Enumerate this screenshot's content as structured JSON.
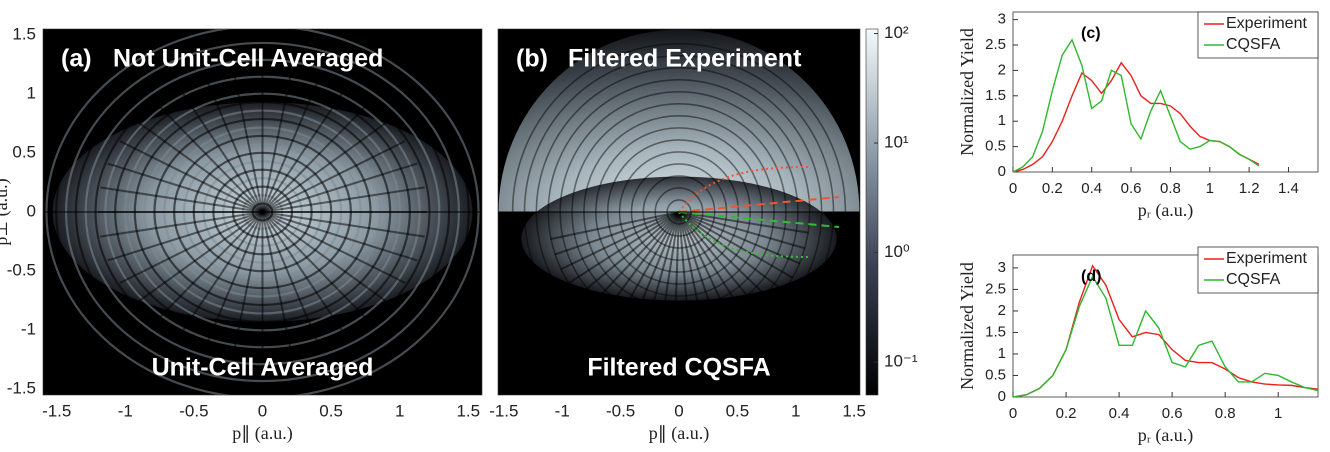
{
  "chart_data": [
    {
      "type": "image",
      "panel_label": "(a)",
      "top_text": "Not Unit-Cell Averaged",
      "bottom_text": "Unit-Cell Averaged",
      "xlabel": "p∥ (a.u.)",
      "ylabel": "p⊥ (a.u.)",
      "xlim": [
        -1.6,
        1.6
      ],
      "ylim": [
        -1.55,
        1.55
      ],
      "xticks": [
        -1.5,
        -1,
        -0.5,
        0,
        0.5,
        1,
        1.5
      ],
      "yticks": [
        -1.5,
        -1,
        -0.5,
        0,
        0.5,
        1,
        1.5
      ]
    },
    {
      "type": "image",
      "panel_label": "(b)",
      "top_text": "Filtered Experiment",
      "bottom_text": "Filtered CQSFA",
      "xlabel": "p∥ (a.u.)",
      "xlim": [
        -1.55,
        1.55
      ],
      "ylim": [
        -1.55,
        1.55
      ],
      "xticks": [
        -1.5,
        -1,
        -0.5,
        0,
        0.5,
        1,
        1.5
      ],
      "colorbar": {
        "scale": "log",
        "lim": [
          0.05,
          110
        ],
        "ticks": [
          {
            "value": 100,
            "label": "10²"
          },
          {
            "value": 10,
            "label": "10¹"
          },
          {
            "value": 1,
            "label": "10⁰"
          },
          {
            "value": 0.1,
            "label": "10⁻¹"
          }
        ]
      }
    },
    {
      "type": "line",
      "panel_label": "(c)",
      "xlabel": "pᵣ (a.u.)",
      "ylabel": "Normalized Yield",
      "xlim": [
        0,
        1.55
      ],
      "ylim": [
        0,
        3.15
      ],
      "xticks": [
        0,
        0.2,
        0.4,
        0.6,
        0.8,
        1,
        1.2,
        1.4
      ],
      "yticks": [
        0,
        0.5,
        1,
        1.5,
        2,
        2.5,
        3
      ],
      "legend": "upper right",
      "x": [
        0,
        0.05,
        0.1,
        0.15,
        0.2,
        0.25,
        0.3,
        0.35,
        0.4,
        0.45,
        0.5,
        0.55,
        0.6,
        0.65,
        0.7,
        0.75,
        0.8,
        0.85,
        0.9,
        0.95,
        1.0,
        1.05,
        1.1,
        1.15,
        1.2,
        1.25
      ],
      "series": [
        {
          "name": "Experiment",
          "color": "#e8211b",
          "values": [
            0,
            0.05,
            0.15,
            0.3,
            0.6,
            1.0,
            1.5,
            1.95,
            1.8,
            1.55,
            1.8,
            2.15,
            1.9,
            1.5,
            1.35,
            1.35,
            1.3,
            1.15,
            0.9,
            0.7,
            0.62,
            0.6,
            0.5,
            0.35,
            0.25,
            0.15
          ]
        },
        {
          "name": "CQSFA",
          "color": "#2eb82e",
          "values": [
            0,
            0.1,
            0.3,
            0.8,
            1.6,
            2.3,
            2.6,
            2.1,
            1.25,
            1.4,
            2.0,
            1.9,
            0.95,
            0.65,
            1.2,
            1.6,
            1.1,
            0.6,
            0.45,
            0.5,
            0.62,
            0.6,
            0.5,
            0.35,
            0.25,
            0.12
          ]
        }
      ]
    },
    {
      "type": "line",
      "panel_label": "(d)",
      "xlabel": "pᵣ (a.u.)",
      "ylabel": "Normalized Yield",
      "xlim": [
        0,
        1.15
      ],
      "ylim": [
        0,
        3.3
      ],
      "xticks": [
        0,
        0.2,
        0.4,
        0.6,
        0.8,
        1
      ],
      "yticks": [
        0,
        0.5,
        1,
        1.5,
        2,
        2.5,
        3
      ],
      "legend": "upper right",
      "x": [
        0,
        0.05,
        0.1,
        0.15,
        0.2,
        0.25,
        0.3,
        0.35,
        0.4,
        0.45,
        0.5,
        0.55,
        0.6,
        0.65,
        0.7,
        0.75,
        0.8,
        0.85,
        0.9,
        0.95,
        1.0,
        1.05,
        1.1,
        1.15
      ],
      "series": [
        {
          "name": "Experiment",
          "color": "#e8211b",
          "values": [
            0,
            0.05,
            0.2,
            0.5,
            1.1,
            2.2,
            3.05,
            2.6,
            1.8,
            1.4,
            1.5,
            1.45,
            1.1,
            0.85,
            0.8,
            0.8,
            0.65,
            0.45,
            0.35,
            0.3,
            0.28,
            0.27,
            0.22,
            0.18
          ]
        },
        {
          "name": "CQSFA",
          "color": "#2eb82e",
          "values": [
            0,
            0.05,
            0.2,
            0.5,
            1.1,
            2.1,
            2.8,
            2.3,
            1.2,
            1.2,
            2.0,
            1.6,
            0.8,
            0.7,
            1.2,
            1.3,
            0.7,
            0.35,
            0.35,
            0.55,
            0.5,
            0.35,
            0.22,
            0.15
          ]
        }
      ]
    }
  ]
}
